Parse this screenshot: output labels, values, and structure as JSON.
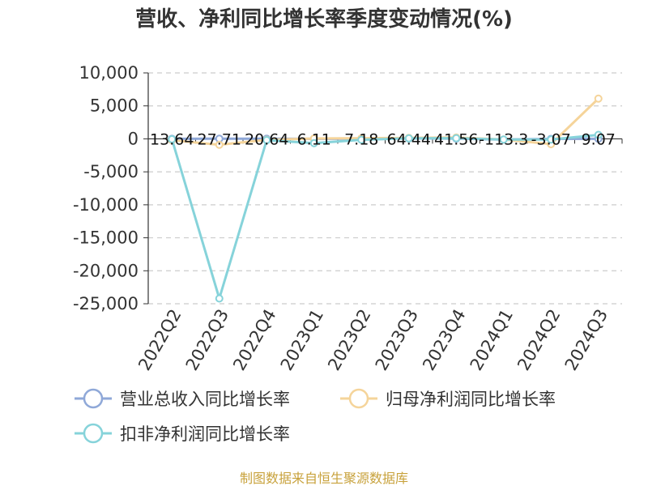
{
  "chart_data": {
    "type": "line",
    "title": "营收、净利同比增长率季度变动情况(%)",
    "categories": [
      "2022Q2",
      "2022Q3",
      "2022Q4",
      "2023Q1",
      "2023Q2",
      "2023Q3",
      "2023Q4",
      "2024Q1",
      "2024Q2",
      "2024Q3"
    ],
    "ylim": [
      -25000,
      10000
    ],
    "yticks": [
      10000,
      5000,
      0,
      -5000,
      -10000,
      -15000,
      -20000,
      -25000
    ],
    "ytick_labels": [
      "10,000",
      "5,000",
      "0",
      "-5,000",
      "-10,000",
      "-15,000",
      "-20,000",
      "-25,000"
    ],
    "grid": true,
    "legend_position": "bottom",
    "series": [
      {
        "name": "营业总收入同比增长率",
        "color": "#8fa8d8",
        "values": [
          13.64,
          27.71,
          20.64,
          6.11,
          7.18,
          64.44,
          41.56,
          -113.3,
          -3.07,
          9.07
        ]
      },
      {
        "name": "归母净利润同比增长率",
        "color": "#f5d49a",
        "values": [
          -200,
          -900,
          -150,
          50,
          100,
          150,
          200,
          -100,
          -800,
          6100
        ]
      },
      {
        "name": "扣非净利润同比增长率",
        "color": "#86d3da",
        "values": [
          -50,
          -24200,
          -200,
          -650,
          -150,
          80,
          100,
          -100,
          -100,
          600
        ]
      }
    ],
    "data_labels": [
      "13.64",
      "27.71",
      "20.64",
      "6.11",
      "7.18",
      "64.44",
      "41.56",
      "-113.3",
      "-3.07",
      "9.07"
    ],
    "source": "制图数据来自恒生聚源数据库"
  }
}
